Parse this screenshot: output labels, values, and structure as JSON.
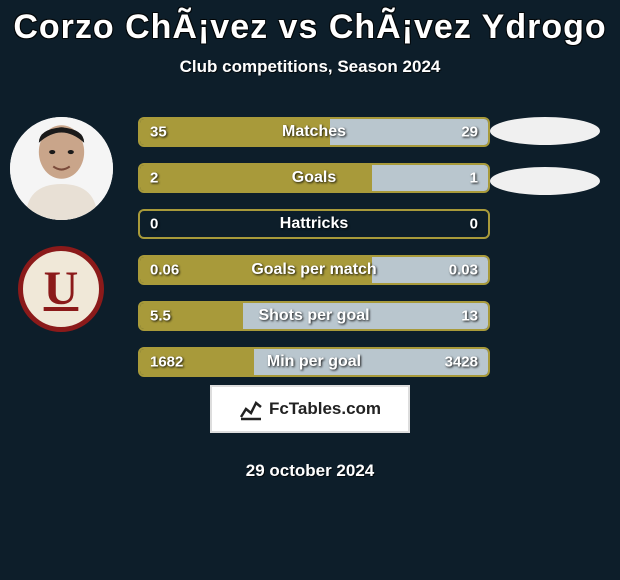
{
  "title": "Corzo ChÃ¡vez vs ChÃ¡vez Ydrogo",
  "subtitle": "Club competitions, Season 2024",
  "date": "29 october 2024",
  "branding_text": "FcTables.com",
  "club_logo_letter": "U",
  "colors": {
    "background": "#0d1e2a",
    "bar_left": "#a89a3a",
    "bar_right": "#b9c6ce",
    "text": "#ffffff",
    "logo_border": "#8b1a1a",
    "logo_bg": "#f0e8d8"
  },
  "bars": [
    {
      "label": "Matches",
      "left_val": "35",
      "right_val": "29",
      "left_pct": 54.7,
      "left_color": "#a89a3a",
      "right_color": "#b9c6ce"
    },
    {
      "label": "Goals",
      "left_val": "2",
      "right_val": "1",
      "left_pct": 66.7,
      "left_color": "#a89a3a",
      "right_color": "#b9c6ce"
    },
    {
      "label": "Hattricks",
      "left_val": "0",
      "right_val": "0",
      "left_pct": 0,
      "left_color": "#a89a3a",
      "right_color": "#a89a3a"
    },
    {
      "label": "Goals per match",
      "left_val": "0.06",
      "right_val": "0.03",
      "left_pct": 66.7,
      "left_color": "#a89a3a",
      "right_color": "#b9c6ce"
    },
    {
      "label": "Shots per goal",
      "left_val": "5.5",
      "right_val": "13",
      "left_pct": 29.7,
      "left_color": "#a89a3a",
      "right_color": "#b9c6ce"
    },
    {
      "label": "Min per goal",
      "left_val": "1682",
      "right_val": "3428",
      "left_pct": 32.9,
      "left_color": "#a89a3a",
      "right_color": "#b9c6ce"
    }
  ]
}
